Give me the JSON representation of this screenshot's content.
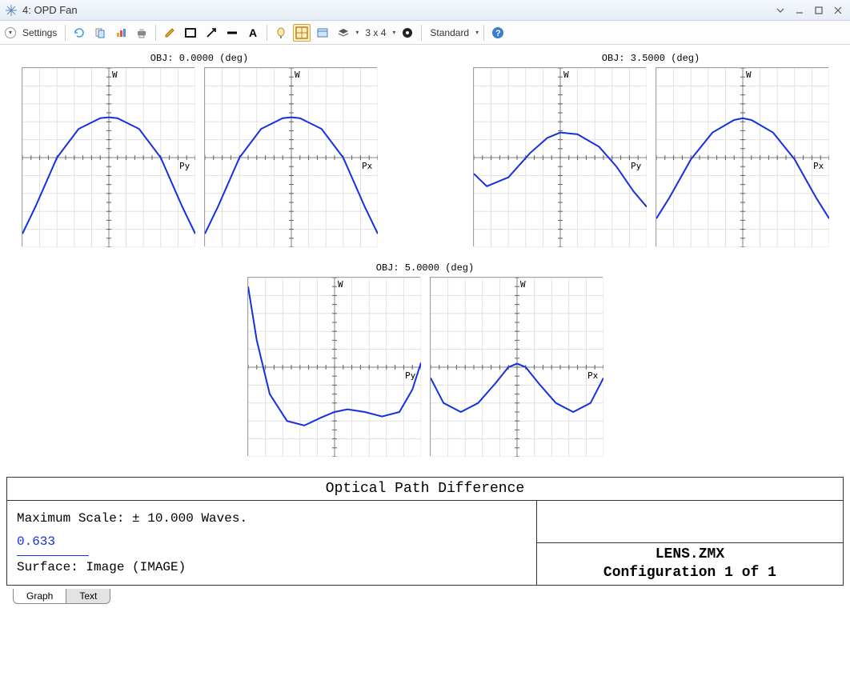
{
  "window": {
    "title": "4: OPD Fan"
  },
  "toolbar": {
    "settings_label": "Settings",
    "layout_label": "3 x 4",
    "preset_label": "Standard"
  },
  "groups": [
    {
      "title": "OBJ: 0.0000 (deg)",
      "plots": [
        {
          "wlabel": "W",
          "xlabel": "Py",
          "points": [
            [
              -1,
              -0.85
            ],
            [
              -0.85,
              -0.55
            ],
            [
              -0.6,
              0.0
            ],
            [
              -0.35,
              0.32
            ],
            [
              -0.1,
              0.44
            ],
            [
              0,
              0.45
            ],
            [
              0.1,
              0.44
            ],
            [
              0.35,
              0.32
            ],
            [
              0.6,
              0.0
            ],
            [
              0.85,
              -0.55
            ],
            [
              1,
              -0.85
            ]
          ]
        },
        {
          "wlabel": "W",
          "xlabel": "Px",
          "points": [
            [
              -1,
              -0.85
            ],
            [
              -0.85,
              -0.55
            ],
            [
              -0.6,
              0.0
            ],
            [
              -0.35,
              0.32
            ],
            [
              -0.1,
              0.44
            ],
            [
              0,
              0.45
            ],
            [
              0.1,
              0.44
            ],
            [
              0.35,
              0.32
            ],
            [
              0.6,
              0.0
            ],
            [
              0.85,
              -0.55
            ],
            [
              1,
              -0.85
            ]
          ]
        }
      ]
    },
    {
      "title": "OBJ: 3.5000 (deg)",
      "plots": [
        {
          "wlabel": "W",
          "xlabel": "Py",
          "points": [
            [
              -1,
              -0.18
            ],
            [
              -0.85,
              -0.32
            ],
            [
              -0.6,
              -0.22
            ],
            [
              -0.35,
              0.05
            ],
            [
              -0.15,
              0.22
            ],
            [
              0,
              0.28
            ],
            [
              0.2,
              0.26
            ],
            [
              0.45,
              0.12
            ],
            [
              0.65,
              -0.1
            ],
            [
              0.85,
              -0.38
            ],
            [
              1,
              -0.55
            ]
          ]
        },
        {
          "wlabel": "W",
          "xlabel": "Px",
          "points": [
            [
              -1,
              -0.68
            ],
            [
              -0.85,
              -0.45
            ],
            [
              -0.6,
              -0.02
            ],
            [
              -0.35,
              0.28
            ],
            [
              -0.1,
              0.42
            ],
            [
              0,
              0.44
            ],
            [
              0.1,
              0.42
            ],
            [
              0.35,
              0.28
            ],
            [
              0.6,
              -0.02
            ],
            [
              0.85,
              -0.45
            ],
            [
              1,
              -0.68
            ]
          ]
        }
      ]
    },
    {
      "title": "OBJ: 5.0000 (deg)",
      "plots": [
        {
          "wlabel": "W",
          "xlabel": "Py",
          "points": [
            [
              -1,
              0.9
            ],
            [
              -0.9,
              0.3
            ],
            [
              -0.75,
              -0.3
            ],
            [
              -0.55,
              -0.6
            ],
            [
              -0.35,
              -0.65
            ],
            [
              -0.15,
              -0.56
            ],
            [
              0,
              -0.5
            ],
            [
              0.15,
              -0.47
            ],
            [
              0.35,
              -0.5
            ],
            [
              0.55,
              -0.55
            ],
            [
              0.75,
              -0.5
            ],
            [
              0.9,
              -0.25
            ],
            [
              1,
              0.05
            ]
          ]
        },
        {
          "wlabel": "W",
          "xlabel": "Px",
          "points": [
            [
              -1,
              -0.12
            ],
            [
              -0.85,
              -0.4
            ],
            [
              -0.65,
              -0.5
            ],
            [
              -0.45,
              -0.4
            ],
            [
              -0.25,
              -0.18
            ],
            [
              -0.1,
              0.0
            ],
            [
              0,
              0.04
            ],
            [
              0.1,
              0.0
            ],
            [
              0.25,
              -0.18
            ],
            [
              0.45,
              -0.4
            ],
            [
              0.65,
              -0.5
            ],
            [
              0.85,
              -0.4
            ],
            [
              1,
              -0.12
            ]
          ]
        }
      ]
    }
  ],
  "chart_style": {
    "grid_color": "#e0e0e0",
    "axis_color": "#808080",
    "tick_color": "#606060",
    "line_color": "#1530e0",
    "line_width": 2,
    "bg_color": "#ffffff",
    "xlim": [
      -1,
      1
    ],
    "ylim": [
      -1,
      1
    ],
    "grid_step": 0.2,
    "tick_step": 0.1
  },
  "info": {
    "title": "Optical Path Difference",
    "scale_line": "Maximum Scale: ± 10.000 Waves.",
    "wavelength": "0.633",
    "surface_line": "Surface: Image (IMAGE)",
    "filename": "LENS.ZMX",
    "config_line": "Configuration 1 of 1"
  },
  "tabs": {
    "graph": "Graph",
    "text": "Text",
    "active": "graph"
  }
}
